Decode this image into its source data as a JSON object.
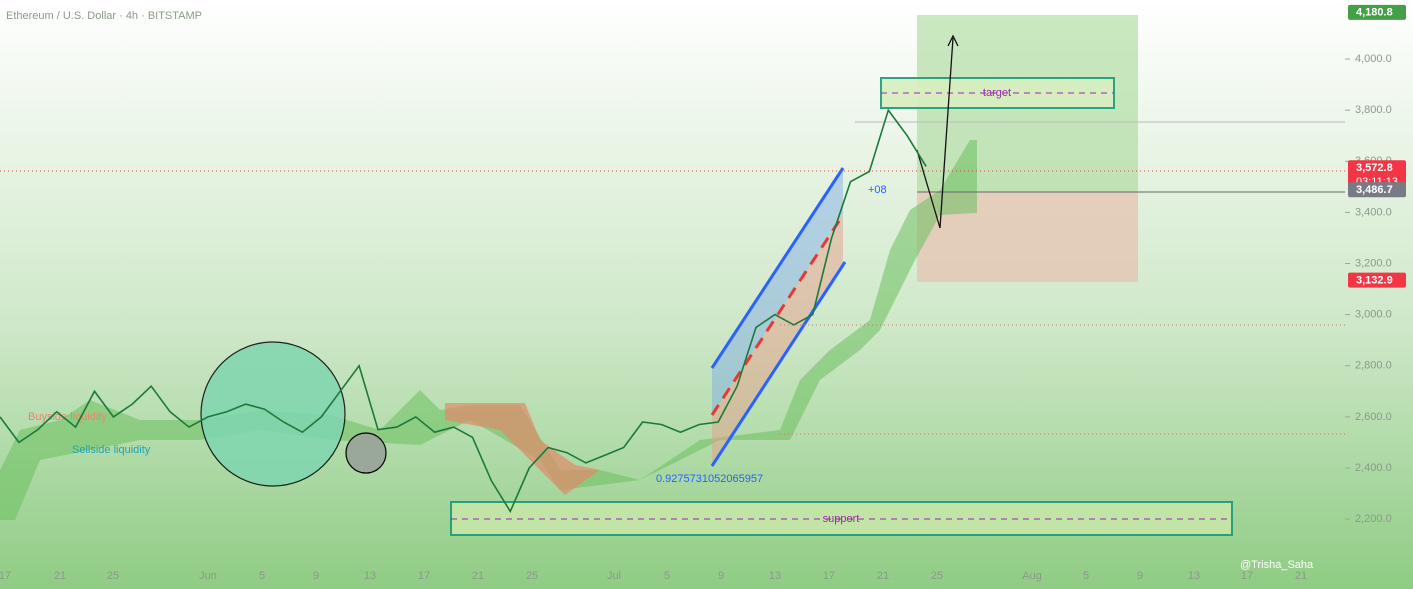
{
  "chart_data": {
    "type": "line",
    "title": "Ethereum / U.S. Dollar · 4h · BITSTAMP",
    "series": [
      {
        "name": "ETHUSD",
        "color": "#1b7a3a",
        "values": [
          2600,
          2500,
          2550,
          2620,
          2560,
          2700,
          2600,
          2650,
          2720,
          2620,
          2560,
          2600,
          2620,
          2650,
          2630,
          2580,
          2540,
          2600,
          2700,
          2800,
          2550,
          2560,
          2600,
          2540,
          2560,
          2520,
          2350,
          2230,
          2400,
          2480,
          2460,
          2420,
          2450,
          2480,
          2580,
          2570,
          2540,
          2570,
          2580,
          2720,
          2950,
          3000,
          2960,
          3000,
          3300,
          3520,
          3560,
          3800,
          3700,
          3580
        ]
      }
    ],
    "xticks": [
      "17",
      "21",
      "25",
      "Jun",
      "5",
      "9",
      "13",
      "17",
      "21",
      "25",
      "Jul",
      "5",
      "9",
      "13",
      "17",
      "21",
      "25",
      "Aug",
      "5",
      "9",
      "13",
      "17",
      "21"
    ],
    "ylim": [
      2040,
      4231
    ],
    "yticks": [
      {
        "value": 2200,
        "label": "2,200.0"
      },
      {
        "value": 2400,
        "label": "2,400.0"
      },
      {
        "value": 2600,
        "label": "2,600.0"
      },
      {
        "value": 2800,
        "label": "2,800.0"
      },
      {
        "value": 3000,
        "label": "3,000.0"
      },
      {
        "value": 3200,
        "label": "3,200.0"
      },
      {
        "value": 3400,
        "label": "3,400.0"
      },
      {
        "value": 3600,
        "label": "3,600.0"
      },
      {
        "value": 3800,
        "label": "3,800.0"
      },
      {
        "value": 4000,
        "label": "4,000.0"
      }
    ],
    "price_tags": [
      {
        "value": 4180.8,
        "label": "4,180.8",
        "color": "#43a047"
      },
      {
        "value": 3572.8,
        "label": "3,572.8",
        "color": "#f23645"
      },
      {
        "value": 3486.7,
        "label": "3,486.7",
        "color": "#787b86"
      },
      {
        "value": 3132.9,
        "label": "3,132.9",
        "color": "#f23645"
      }
    ],
    "countdown": "03:11:13",
    "annotations": {
      "target": "target",
      "support": "support",
      "ratio": "0.9275731052065957",
      "offset": "+08",
      "buyside": "Buyside liquidity",
      "sellside": "Sellside liquidity"
    },
    "watermark": "@Trisha_Saha"
  }
}
